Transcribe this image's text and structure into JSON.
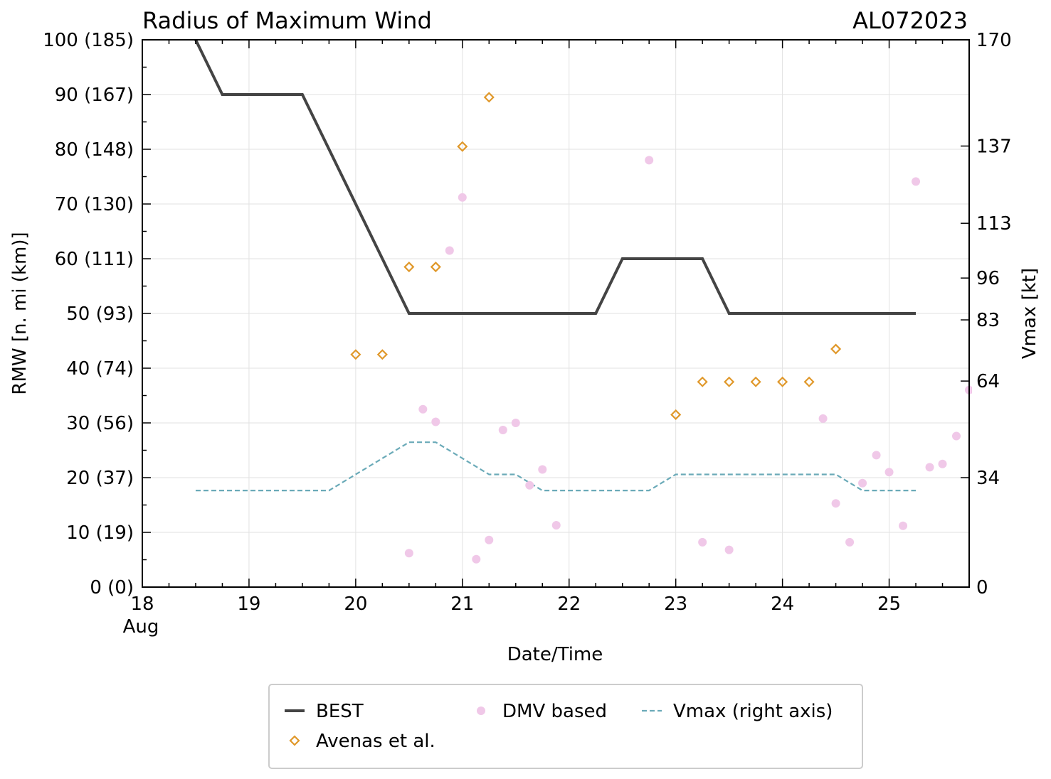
{
  "chart_data": {
    "type": "line",
    "title": "Radius of Maximum Wind",
    "storm_id": "AL072023",
    "xlabel": "Date/Time",
    "ylabel": "RMW [n. mi (km)]",
    "ylabel_right": "Vmax [kt]",
    "xlim": [
      18,
      25.75
    ],
    "ylim": [
      0,
      100
    ],
    "x_ticks": [
      {
        "value": 18,
        "label": "18"
      },
      {
        "value": 19,
        "label": "19"
      },
      {
        "value": 20,
        "label": "20"
      },
      {
        "value": 21,
        "label": "21"
      },
      {
        "value": 22,
        "label": "22"
      },
      {
        "value": 23,
        "label": "23"
      },
      {
        "value": 24,
        "label": "24"
      },
      {
        "value": 25,
        "label": "25"
      }
    ],
    "x_month_label": "Aug",
    "y_ticks": [
      {
        "value": 0,
        "label": "0 (0)"
      },
      {
        "value": 10,
        "label": "10 (19)"
      },
      {
        "value": 20,
        "label": "20 (37)"
      },
      {
        "value": 30,
        "label": "30 (56)"
      },
      {
        "value": 40,
        "label": "40 (74)"
      },
      {
        "value": 50,
        "label": "50 (93)"
      },
      {
        "value": 60,
        "label": "60 (111)"
      },
      {
        "value": 70,
        "label": "70 (130)"
      },
      {
        "value": 80,
        "label": "80 (148)"
      },
      {
        "value": 90,
        "label": "90 (167)"
      },
      {
        "value": 100,
        "label": "100 (185)"
      }
    ],
    "y_right_lim": [
      0,
      170
    ],
    "y_right_ticks": [
      {
        "value": 0,
        "label": "0"
      },
      {
        "value": 34,
        "label": "34"
      },
      {
        "value": 64,
        "label": "64"
      },
      {
        "value": 83,
        "label": "83"
      },
      {
        "value": 96,
        "label": "96"
      },
      {
        "value": 113,
        "label": "113"
      },
      {
        "value": 137,
        "label": "137"
      },
      {
        "value": 170,
        "label": "170"
      }
    ],
    "series": [
      {
        "name": "BEST",
        "style": "line",
        "color": "#444444",
        "x": [
          18.5,
          18.75,
          19.5,
          20.5,
          22.25,
          22.5,
          23.25,
          23.5,
          25.25
        ],
        "y": [
          100,
          90,
          90,
          50,
          50,
          60,
          60,
          50,
          50
        ]
      },
      {
        "name": "Avenas et al.",
        "style": "diamond",
        "color": "#e0982a",
        "x": [
          20.0,
          20.25,
          20.5,
          20.75,
          21.0,
          21.25,
          23.0,
          23.25,
          23.5,
          23.75,
          24.0,
          24.25,
          24.5
        ],
        "y": [
          42.5,
          42.5,
          58.5,
          58.5,
          80.5,
          89.5,
          31.5,
          37.5,
          37.5,
          37.5,
          37.5,
          37.5,
          43.5
        ]
      },
      {
        "name": "DMV based",
        "style": "dot",
        "color": "#f0c8e8",
        "x": [
          20.5,
          20.63,
          20.75,
          20.88,
          21.0,
          21.13,
          21.25,
          21.38,
          21.5,
          21.63,
          21.75,
          21.88,
          22.75,
          23.25,
          23.5,
          24.38,
          24.5,
          24.63,
          24.75,
          24.88,
          25.0,
          25.13,
          25.25,
          25.38,
          25.5,
          25.63,
          25.75
        ],
        "y": [
          6.2,
          32.5,
          30.2,
          61.5,
          71.2,
          5.1,
          8.6,
          28.7,
          30,
          18.6,
          21.5,
          11.3,
          78,
          8.2,
          6.8,
          30.8,
          15.3,
          8.2,
          19,
          24.1,
          21,
          11.2,
          74.1,
          21.9,
          22.5,
          27.6,
          36
        ]
      },
      {
        "name": "Vmax (right axis)",
        "style": "dashed",
        "color": "#6aaab8",
        "axis": "right",
        "x": [
          18.5,
          19.75,
          20.5,
          20.75,
          21.25,
          21.5,
          21.75,
          22.75,
          23.0,
          24.5,
          24.75,
          25.25
        ],
        "y": [
          30,
          30,
          45,
          45,
          35,
          35,
          30,
          30,
          35,
          35,
          30,
          30
        ]
      }
    ],
    "legend": {
      "placement": "bottom-center",
      "entries": [
        {
          "name": "BEST",
          "style": "line",
          "color": "#444444"
        },
        {
          "name": "DMV based",
          "style": "dot",
          "color": "#f0c8e8"
        },
        {
          "name": "Vmax (right axis)",
          "style": "dashed",
          "color": "#6aaab8"
        },
        {
          "name": "Avenas et al.",
          "style": "diamond",
          "color": "#e0982a"
        }
      ]
    },
    "grid": true
  }
}
